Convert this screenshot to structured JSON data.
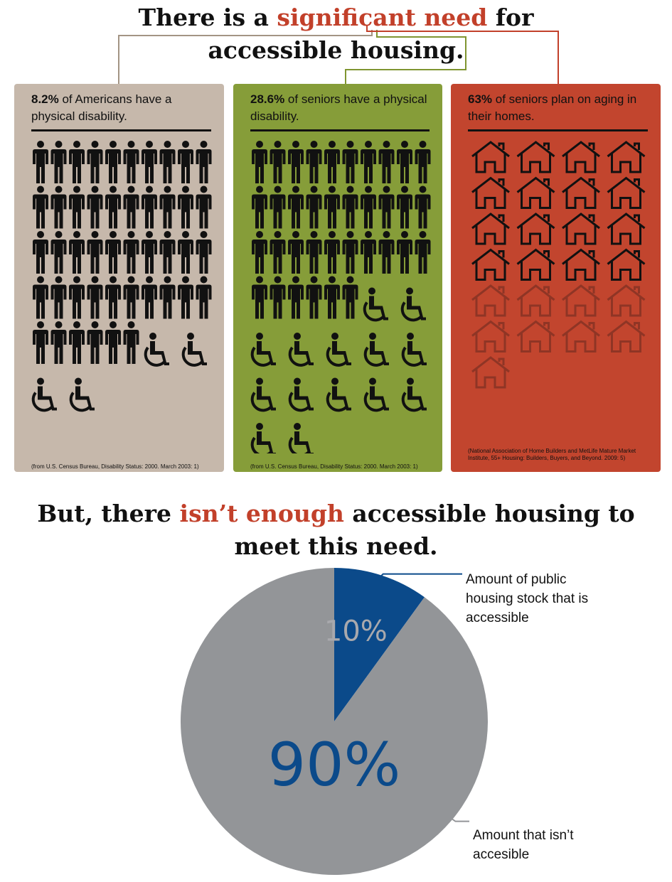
{
  "header": {
    "title_part1": "There is a ",
    "title_highlight": "significant need",
    "title_part2": " for",
    "title_line2": "accessible housing."
  },
  "panels": [
    {
      "stat_value": "8.2%",
      "stat_text": " of Americans have a physical disability.",
      "icons_total_people": 50,
      "icons_wheelchair": 4,
      "source": "(from U.S. Census Bureau, Disability Status: 2000. March 2003: 1)"
    },
    {
      "stat_value": "28.6%",
      "stat_text": " of seniors have a physical disability.",
      "icons_total_people": 50,
      "icons_wheelchair": 14,
      "source": "(from U.S. Census Bureau, Disability Status: 2000. March 2003: 1)"
    },
    {
      "stat_value": "63%",
      "stat_text": " of seniors plan on aging in their homes.",
      "icons_total_houses": 25,
      "icons_highlighted": 16,
      "source": "(National Association of Home Builders and MetLife Mature Market Institute, 55+ Housing: Builders, Buyers, and Beyond. 2009: 5)"
    }
  ],
  "section2": {
    "title_part1": "But, there ",
    "title_highlight": "isn’t enough",
    "title_part2": " accessible housing to",
    "title_line2": "meet this need."
  },
  "chart_data": {
    "type": "pie",
    "title": "But, there isn’t enough accessible housing to meet this need.",
    "slices": [
      {
        "label": "Amount of public housing stock that is accessible",
        "value": 10,
        "display": "10%",
        "color": "#0b4a8a",
        "text_color": "#a9a9ad"
      },
      {
        "label": "Amount that isn’t accesible",
        "value": 90,
        "display": "90%",
        "color": "#939598",
        "text_color": "#0b4a8a"
      }
    ]
  },
  "colors": {
    "accent_red": "#c2402a",
    "panel1_bg": "#c6b8ab",
    "panel2_bg": "#869d39",
    "panel3_bg": "#c2452e",
    "icon_dark": "#111111",
    "house_faded": "#8f3525"
  }
}
